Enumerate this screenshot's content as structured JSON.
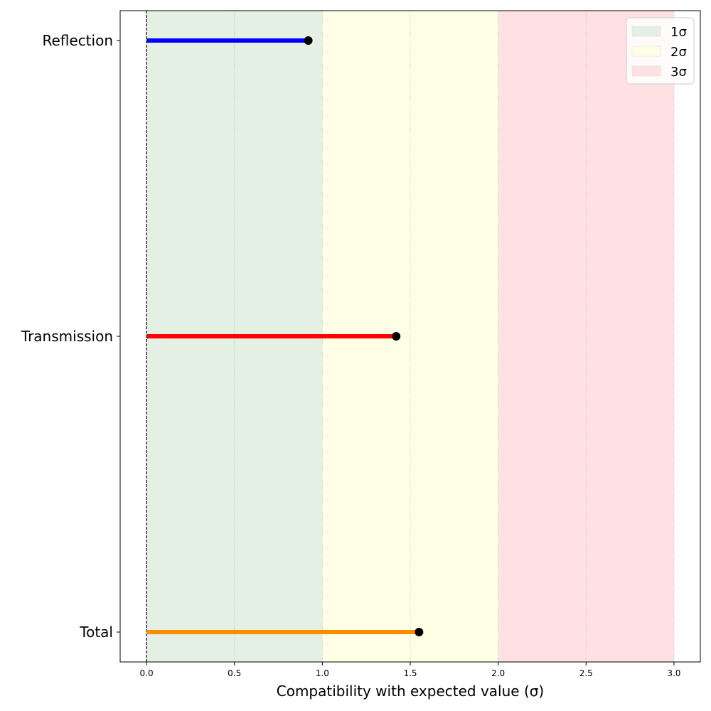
{
  "chart_data": {
    "type": "lollipop",
    "title": "",
    "xlabel": "Compatibility with expected value (σ)",
    "ylabel": "",
    "xlim": [
      -0.15,
      3.15
    ],
    "xticks": [
      "0.0",
      "0.5",
      "1.0",
      "1.5",
      "2.0",
      "2.5",
      "3.0"
    ],
    "grid": "vertical dotted",
    "legend_position": "top-right",
    "reference_line": 0,
    "categories": [
      "Reflection",
      "Transmission",
      "Total"
    ],
    "values": [
      0.92,
      1.42,
      1.55
    ],
    "colors": [
      "#0000ff",
      "#ff0000",
      "#ff8c00"
    ],
    "bands": [
      {
        "label": "1σ",
        "from": 0,
        "to": 1,
        "color": "#e5f0e5"
      },
      {
        "label": "2σ",
        "from": 1,
        "to": 2,
        "color": "#ffffe5"
      },
      {
        "label": "3σ",
        "from": 2,
        "to": 3,
        "color": "#ffe1e3"
      }
    ]
  }
}
